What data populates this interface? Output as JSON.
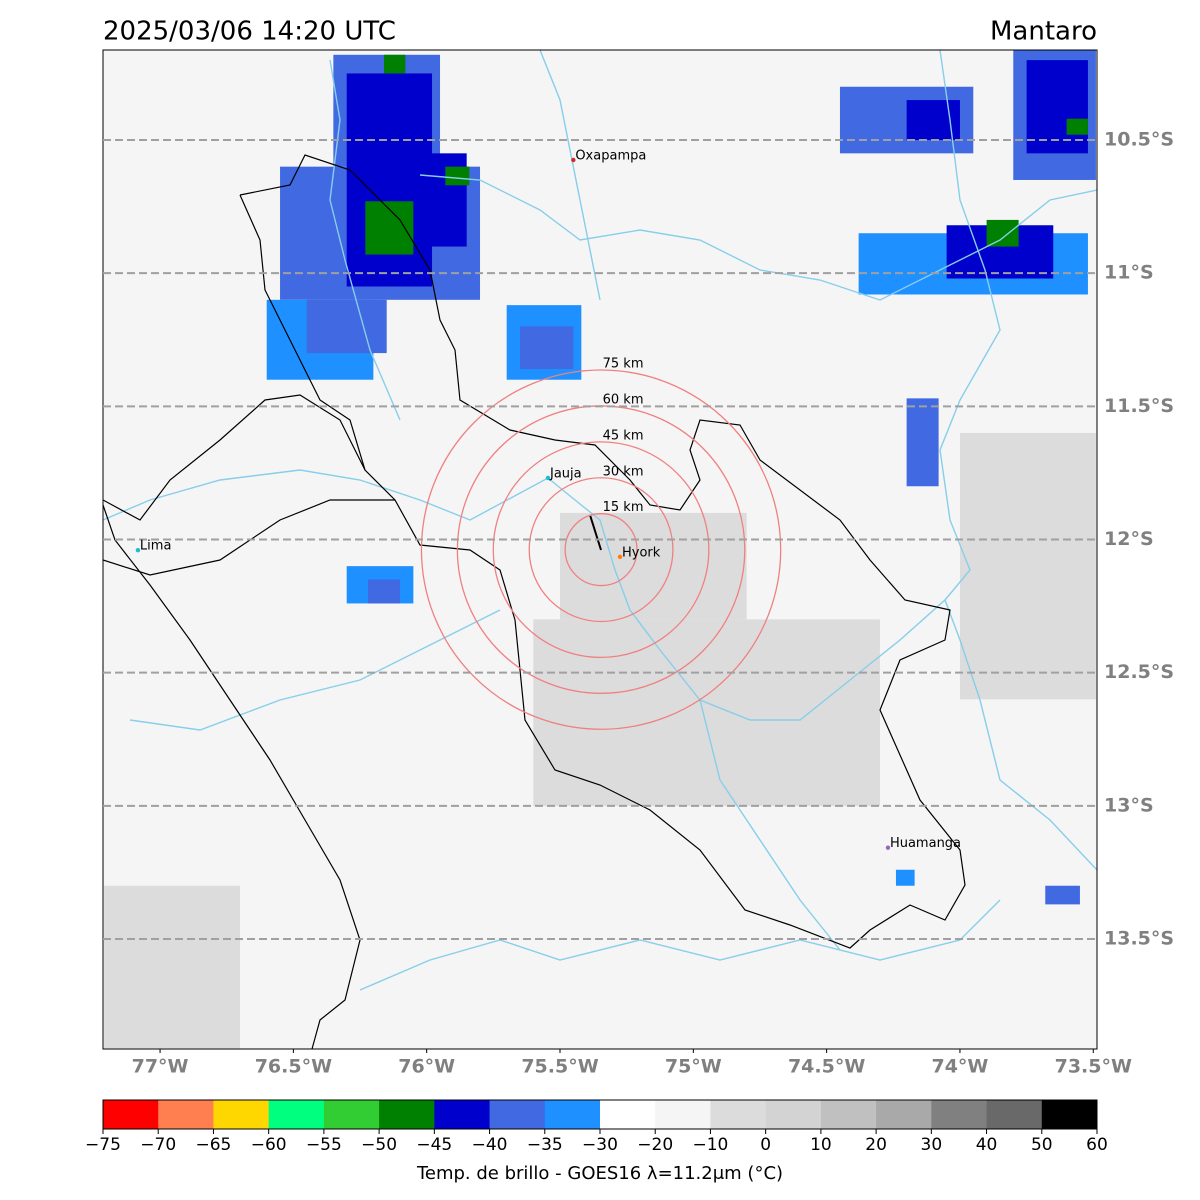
{
  "map": {
    "title": "2025/03/06 14:20 UTC",
    "region": "Mantaro",
    "xlim": [
      -77.214,
      -73.486
    ],
    "ylim": [
      -10.162,
      -13.913
    ],
    "xticks": [
      {
        "value": -77,
        "label": "77°W"
      },
      {
        "value": -76.5,
        "label": "76.5°W"
      },
      {
        "value": -76,
        "label": "76°W"
      },
      {
        "value": -75.5,
        "label": "75.5°W"
      },
      {
        "value": -75,
        "label": "75°W"
      },
      {
        "value": -74.5,
        "label": "74.5°W"
      },
      {
        "value": -74,
        "label": "74°W"
      },
      {
        "value": -73.5,
        "label": "73.5°W"
      }
    ],
    "yticks": [
      {
        "value": -10.5,
        "label": "10.5°S"
      },
      {
        "value": -11,
        "label": "11°S"
      },
      {
        "value": -11.5,
        "label": "11.5°S"
      },
      {
        "value": -12,
        "label": "12°S"
      },
      {
        "value": -12.5,
        "label": "12.5°S"
      },
      {
        "value": -13,
        "label": "13°S"
      },
      {
        "value": -13.5,
        "label": "13.5°S"
      }
    ],
    "grid": true,
    "background_temp": -15,
    "cloud_patches": [
      {
        "lon": [
          -77.21,
          -76.7
        ],
        "lat": [
          -13.3,
          -13.91
        ],
        "temp": -5
      },
      {
        "lon": [
          -75.6,
          -74.3
        ],
        "lat": [
          -12.3,
          -13.0
        ],
        "temp": -5
      },
      {
        "lon": [
          -75.5,
          -74.8
        ],
        "lat": [
          -11.9,
          -12.3
        ],
        "temp": -5
      },
      {
        "lon": [
          -74.0,
          -73.49
        ],
        "lat": [
          -11.6,
          -12.6
        ],
        "temp": -5
      },
      {
        "lon": [
          -76.55,
          -75.8
        ],
        "lat": [
          -10.6,
          -11.1
        ],
        "temp": -37
      },
      {
        "lon": [
          -76.35,
          -75.95
        ],
        "lat": [
          -10.18,
          -10.6
        ],
        "temp": -37
      },
      {
        "lon": [
          -76.6,
          -76.2
        ],
        "lat": [
          -11.1,
          -11.4
        ],
        "temp": -32
      },
      {
        "lon": [
          -76.45,
          -76.15
        ],
        "lat": [
          -11.1,
          -11.3
        ],
        "temp": -37
      },
      {
        "lon": [
          -76.3,
          -75.98
        ],
        "lat": [
          -10.25,
          -11.05
        ],
        "temp": -42
      },
      {
        "lon": [
          -76.0,
          -75.85
        ],
        "lat": [
          -10.55,
          -10.9
        ],
        "temp": -42
      },
      {
        "lon": [
          -76.23,
          -76.05
        ],
        "lat": [
          -10.73,
          -10.93
        ],
        "temp": -47
      },
      {
        "lon": [
          -76.16,
          -76.08
        ],
        "lat": [
          -10.18,
          -10.25
        ],
        "temp": -47
      },
      {
        "lon": [
          -75.93,
          -75.84
        ],
        "lat": [
          -10.6,
          -10.67
        ],
        "temp": -47
      },
      {
        "lon": [
          -75.7,
          -75.42
        ],
        "lat": [
          -11.12,
          -11.4
        ],
        "temp": -32
      },
      {
        "lon": [
          -75.65,
          -75.45
        ],
        "lat": [
          -11.2,
          -11.36
        ],
        "temp": -37
      },
      {
        "lon": [
          -76.3,
          -76.05
        ],
        "lat": [
          -12.1,
          -12.24
        ],
        "temp": -32
      },
      {
        "lon": [
          -76.22,
          -76.1
        ],
        "lat": [
          -12.15,
          -12.24
        ],
        "temp": -37
      },
      {
        "lon": [
          -74.38,
          -73.52
        ],
        "lat": [
          -10.85,
          -11.08
        ],
        "temp": -32
      },
      {
        "lon": [
          -74.05,
          -73.65
        ],
        "lat": [
          -10.82,
          -11.02
        ],
        "temp": -42
      },
      {
        "lon": [
          -73.9,
          -73.78
        ],
        "lat": [
          -10.8,
          -10.9
        ],
        "temp": -47
      },
      {
        "lon": [
          -73.8,
          -73.49
        ],
        "lat": [
          -10.16,
          -10.65
        ],
        "temp": -37
      },
      {
        "lon": [
          -73.75,
          -73.52
        ],
        "lat": [
          -10.2,
          -10.55
        ],
        "temp": -42
      },
      {
        "lon": [
          -73.6,
          -73.52
        ],
        "lat": [
          -10.42,
          -10.48
        ],
        "temp": -47
      },
      {
        "lon": [
          -74.45,
          -73.95
        ],
        "lat": [
          -10.3,
          -10.55
        ],
        "temp": -37
      },
      {
        "lon": [
          -74.2,
          -74.0
        ],
        "lat": [
          -10.35,
          -10.5
        ],
        "temp": -42
      },
      {
        "lon": [
          -74.2,
          -74.08
        ],
        "lat": [
          -11.47,
          -11.8
        ],
        "temp": -37
      },
      {
        "lon": [
          -73.68,
          -73.55
        ],
        "lat": [
          -13.3,
          -13.37
        ],
        "temp": -37
      },
      {
        "lon": [
          -74.24,
          -74.17
        ],
        "lat": [
          -13.24,
          -13.3
        ],
        "temp": -32
      }
    ],
    "cities": [
      {
        "name": "Oxapampa",
        "lon": -75.45,
        "lat": -10.575,
        "color": "#d62728"
      },
      {
        "name": "Jauja",
        "lon": -75.545,
        "lat": -11.769,
        "color": "#17becf"
      },
      {
        "name": "Hyork",
        "lon": -75.275,
        "lat": -12.065,
        "color": "#ff7f0e"
      },
      {
        "name": "Lima",
        "lon": -77.083,
        "lat": -12.04,
        "color": "#17becf"
      },
      {
        "name": "Huamanga",
        "lon": -74.27,
        "lat": -13.157,
        "color": "#9467bd"
      }
    ],
    "rings": {
      "center_lon": -75.346,
      "center_lat": -12.038,
      "color": "#f08080",
      "radii": [
        {
          "value": 15,
          "label": "15 km"
        },
        {
          "value": 30,
          "label": "30 km"
        },
        {
          "value": 45,
          "label": "45 km"
        },
        {
          "value": 60,
          "label": "60 km"
        },
        {
          "value": 75,
          "label": "75 km"
        }
      ]
    },
    "colorbar": {
      "label": "Temp. de brillo - GOES16 λ=11.2μm (°C)",
      "bounds": [
        {
          "value": -75,
          "label": "−75"
        },
        {
          "value": -70,
          "label": "−70"
        },
        {
          "value": -65,
          "label": "−65"
        },
        {
          "value": -60,
          "label": "−60"
        },
        {
          "value": -55,
          "label": "−55"
        },
        {
          "value": -50,
          "label": "−50"
        },
        {
          "value": -45,
          "label": "−45"
        },
        {
          "value": -40,
          "label": "−40"
        },
        {
          "value": -35,
          "label": "−35"
        },
        {
          "value": -30,
          "label": "−30"
        },
        {
          "value": -20,
          "label": "−20"
        },
        {
          "value": -10,
          "label": "−10"
        },
        0,
        10,
        20,
        30,
        40,
        50,
        60
      ],
      "colors": [
        "#ff0000",
        "#ff7f50",
        "#ffd700",
        "#00ff7f",
        "#32cd32",
        "#008000",
        "#0000cd",
        "#4169e1",
        "#1e90ff",
        "#ffffff",
        "#f5f5f5",
        "#dcdcdc",
        "#d3d3d3",
        "#c0c0c0",
        "#a9a9a9",
        "#808080",
        "#696969",
        "#000000"
      ]
    }
  }
}
